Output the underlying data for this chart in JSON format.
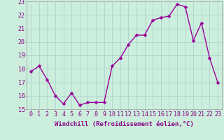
{
  "x": [
    0,
    1,
    2,
    3,
    4,
    5,
    6,
    7,
    8,
    9,
    10,
    11,
    12,
    13,
    14,
    15,
    16,
    17,
    18,
    19,
    20,
    21,
    22,
    23
  ],
  "y": [
    17.8,
    18.2,
    17.2,
    16.0,
    15.4,
    16.2,
    15.3,
    15.5,
    15.5,
    15.5,
    18.2,
    18.8,
    19.8,
    20.5,
    20.5,
    21.6,
    21.8,
    21.9,
    22.8,
    22.6,
    20.1,
    21.4,
    18.8,
    17.0
  ],
  "line_color": "#990099",
  "marker_color": "#990099",
  "background_color": "#cceedd",
  "grid_color": "#aacccc",
  "xlabel": "Windchill (Refroidissement éolien,°C)",
  "ylim": [
    15,
    23
  ],
  "yticks": [
    15,
    16,
    17,
    18,
    19,
    20,
    21,
    22,
    23
  ],
  "xticks": [
    0,
    1,
    2,
    3,
    4,
    5,
    6,
    7,
    8,
    9,
    10,
    11,
    12,
    13,
    14,
    15,
    16,
    17,
    18,
    19,
    20,
    21,
    22,
    23
  ],
  "xlabel_fontsize": 6.5,
  "tick_fontsize": 6,
  "line_width": 1.0,
  "marker_size": 2.5
}
